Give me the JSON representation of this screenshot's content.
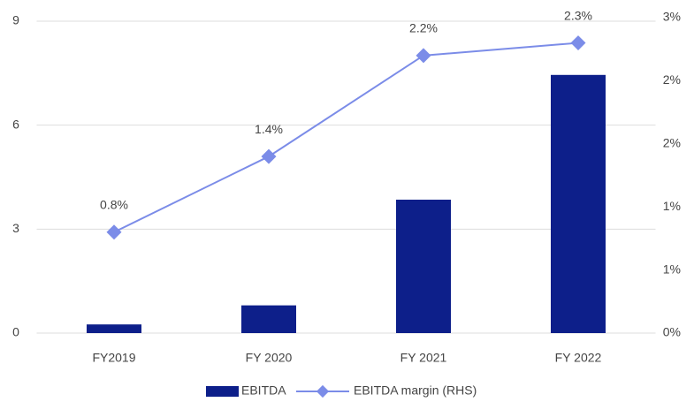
{
  "chart_data": {
    "type": "bar-line",
    "categories": [
      "FY2019",
      "FY 2020",
      "FY 2021",
      "FY 2022"
    ],
    "series": [
      {
        "name": "EBITDA",
        "type": "bar",
        "color": "#0d1f8a",
        "values": [
          0.25,
          0.8,
          3.85,
          7.45
        ]
      },
      {
        "name": "EBITDA margin (RHS)",
        "type": "line",
        "axis": "y2",
        "color": "#7b8ce8",
        "values": [
          0.8,
          1.4,
          2.2,
          2.3
        ],
        "value_labels": [
          "0.8%",
          "1.4%",
          "2.2%",
          "2.3%"
        ]
      }
    ],
    "ylim": [
      0,
      9
    ],
    "yticks": [
      0,
      3,
      6,
      9
    ],
    "y2lim": [
      0,
      2.5
    ],
    "y2ticks": [
      {
        "value": 0,
        "label": "0%"
      },
      {
        "value": 0.5,
        "label": "1%"
      },
      {
        "value": 1,
        "label": "1%"
      },
      {
        "value": 1.5,
        "label": "2%"
      },
      {
        "value": 2,
        "label": "2%"
      },
      {
        "value": 2.5,
        "label": "3%"
      }
    ],
    "grid": true,
    "legend": "bottom"
  }
}
